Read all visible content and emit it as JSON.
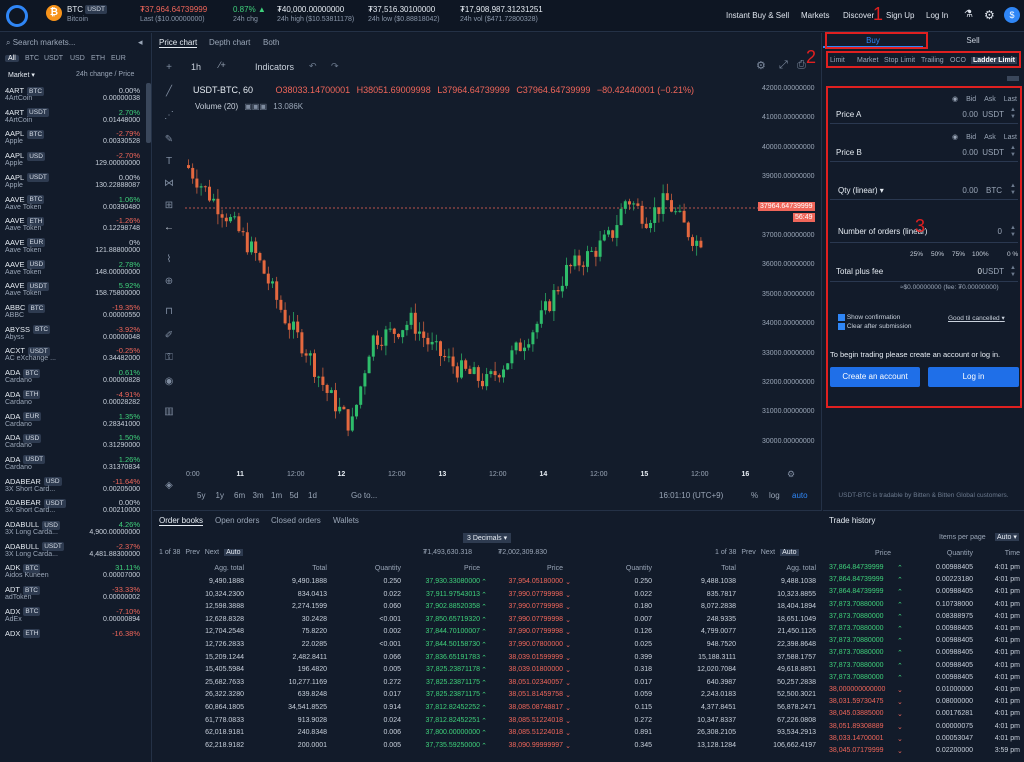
{
  "header": {
    "pair": "BTC",
    "pair_tag": "USDT",
    "pair_name": "Bitcoin",
    "last_value": "₮37,964.64739999",
    "last_label": "Last ($10.00000000)",
    "chg_value": "0.87%",
    "chg_arrow": "▲",
    "chg_label": "24h chg",
    "high_value": "₮40,000.00000000",
    "high_label": "24h high ($10.53811178)",
    "low_value": "₮37,516.30100000",
    "low_label": "24h low ($0.88818042)",
    "vol_value": "₮17,908,987.31231251",
    "vol_label": "24h vol ($471.72800328)",
    "nav": [
      "Instant Buy & Sell",
      "Markets",
      "Discover",
      "Sign Up",
      "Log In"
    ]
  },
  "sidebar": {
    "search_placeholder": "Search markets...",
    "filters": [
      "All",
      "BTC",
      "USDT",
      "USD",
      "ETH",
      "EUR"
    ],
    "col_market": "Market",
    "col_change": "24h change / Price",
    "items": [
      {
        "sym": "4ART",
        "tag": "BTC",
        "name": "4ArtCoin",
        "change": "0.00%",
        "price": "0.00000038",
        "dir": "flat"
      },
      {
        "sym": "4ART",
        "tag": "USDT",
        "name": "4ArtCoin",
        "change": "2.70%",
        "price": "0.01448000",
        "dir": "up"
      },
      {
        "sym": "AAPL",
        "tag": "BTC",
        "name": "Apple",
        "change": "-2.79%",
        "price": "0.00330528",
        "dir": "down"
      },
      {
        "sym": "AAPL",
        "tag": "USD",
        "name": "Apple",
        "change": "-2.70%",
        "price": "129.00000000",
        "dir": "down"
      },
      {
        "sym": "AAPL",
        "tag": "USDT",
        "name": "Apple",
        "change": "0.00%",
        "price": "130.22888087",
        "dir": "flat"
      },
      {
        "sym": "AAVE",
        "tag": "BTC",
        "name": "Aave Token",
        "change": "1.06%",
        "price": "0.00390480",
        "dir": "up"
      },
      {
        "sym": "AAVE",
        "tag": "ETH",
        "name": "Aave Token",
        "change": "-1.26%",
        "price": "0.12298748",
        "dir": "down"
      },
      {
        "sym": "AAVE",
        "tag": "EUR",
        "name": "Aave Token",
        "change": "0%",
        "price": "121.88800000",
        "dir": "flat"
      },
      {
        "sym": "AAVE",
        "tag": "USD",
        "name": "Aave Token",
        "change": "2.78%",
        "price": "148.00000000",
        "dir": "up"
      },
      {
        "sym": "AAVE",
        "tag": "USDT",
        "name": "Aave Token",
        "change": "5.92%",
        "price": "158.75800000",
        "dir": "up"
      },
      {
        "sym": "ABBC",
        "tag": "BTC",
        "name": "ABBC",
        "change": "-19.35%",
        "price": "0.00000550",
        "dir": "down"
      },
      {
        "sym": "ABYSS",
        "tag": "BTC",
        "name": "Abyss",
        "change": "-3.92%",
        "price": "0.00000048",
        "dir": "down"
      },
      {
        "sym": "ACXT",
        "tag": "USDT",
        "name": "AC eXchange ...",
        "change": "-0.25%",
        "price": "0.34482000",
        "dir": "down"
      },
      {
        "sym": "ADA",
        "tag": "BTC",
        "name": "Cardano",
        "change": "0.61%",
        "price": "0.00000828",
        "dir": "up"
      },
      {
        "sym": "ADA",
        "tag": "ETH",
        "name": "Cardano",
        "change": "-4.91%",
        "price": "0.00028282",
        "dir": "down"
      },
      {
        "sym": "ADA",
        "tag": "EUR",
        "name": "Cardano",
        "change": "1.35%",
        "price": "0.28341000",
        "dir": "up"
      },
      {
        "sym": "ADA",
        "tag": "USD",
        "name": "Cardano",
        "change": "1.50%",
        "price": "0.31290000",
        "dir": "up"
      },
      {
        "sym": "ADA",
        "tag": "USDT",
        "name": "Cardano",
        "change": "1.26%",
        "price": "0.31370834",
        "dir": "up"
      },
      {
        "sym": "ADABEAR",
        "tag": "USD",
        "name": "3X Short Card...",
        "change": "-11.64%",
        "price": "0.00205000",
        "dir": "down"
      },
      {
        "sym": "ADABEAR",
        "tag": "USDT",
        "name": "3X Short Card...",
        "change": "0.00%",
        "price": "0.00210000",
        "dir": "flat"
      },
      {
        "sym": "ADABULL",
        "tag": "USD",
        "name": "3X Long Carda...",
        "change": "4.26%",
        "price": "4,900.00000000",
        "dir": "up"
      },
      {
        "sym": "ADABULL",
        "tag": "USDT",
        "name": "3X Long Carda...",
        "change": "-2.37%",
        "price": "4,481.88300000",
        "dir": "down"
      },
      {
        "sym": "ADK",
        "tag": "BTC",
        "name": "Aidos Kuneen",
        "change": "31.11%",
        "price": "0.00007000",
        "dir": "up"
      },
      {
        "sym": "ADT",
        "tag": "BTC",
        "name": "adToken",
        "change": "-33.33%",
        "price": "0.00000002",
        "dir": "down"
      },
      {
        "sym": "ADX",
        "tag": "BTC",
        "name": "AdEx",
        "change": "-7.10%",
        "price": "0.00000894",
        "dir": "down"
      },
      {
        "sym": "ADX",
        "tag": "ETH",
        "name": "",
        "change": "-16.38%",
        "price": "",
        "dir": "down"
      }
    ]
  },
  "chart": {
    "tabs": [
      "Price chart",
      "Depth chart",
      "Both"
    ],
    "interval": "1h",
    "indicators": "Indicators",
    "symbol": "USDT-BTC, 60",
    "volume_label": "Volume (20)",
    "volume_value": "13.086K",
    "o": "O38033.14700001",
    "h": "H38051.69009998",
    "l": "L37964.64739999",
    "c": "C37964.64739999",
    "chg": "−80.42440001 (−0.21%)",
    "price_tag": "37964.64739999",
    "time_tag": "56:49",
    "y_ticks": [
      "42000.00000000",
      "41000.00000000",
      "40000.00000000",
      "39000.00000000",
      "38000.00000000",
      "37000.00000000",
      "36000.00000000",
      "35000.00000000",
      "34000.00000000",
      "33000.00000000",
      "32000.00000000",
      "31000.00000000",
      "30000.00000000"
    ],
    "x_ticks": [
      "0:00",
      "11",
      "12:00",
      "12",
      "12:00",
      "13",
      "12:00",
      "14",
      "12:00",
      "15",
      "12:00",
      "16"
    ],
    "ranges": [
      "5y",
      "1y",
      "6m",
      "3m",
      "1m",
      "5d",
      "1d"
    ],
    "goto": "Go to...",
    "clock": "16:01:10 (UTC+9)",
    "pct": "%",
    "log": "log",
    "auto": "auto"
  },
  "orderbook": {
    "tabs": [
      "Order books",
      "Open orders",
      "Closed orders",
      "Wallets"
    ],
    "decimals": "3 Decimals",
    "left_pager": "1 of 38",
    "prev": "Prev",
    "next": "Next",
    "auto": "Auto",
    "bid_total": "₮1,493,630.318",
    "ask_total": "₮2,002,309.830",
    "right_pager": "1 of 38",
    "bid_headers": [
      "Agg. total",
      "Total",
      "Quantity",
      "Price"
    ],
    "ask_headers": [
      "Price",
      "Quantity",
      "Total",
      "Agg. total"
    ],
    "bids": [
      [
        "9,490.1888",
        "9,490.1888",
        "0.250",
        "37,930.33080000"
      ],
      [
        "10,324.2300",
        "834.0413",
        "0.022",
        "37,911.97543013"
      ],
      [
        "12,598.3888",
        "2,274.1599",
        "0.060",
        "37,902.88520358"
      ],
      [
        "12,628.8328",
        "30.2428",
        "<0.001",
        "37,850.65719320"
      ],
      [
        "12,704.2548",
        "75.8220",
        "0.002",
        "37,844.70100007"
      ],
      [
        "12,726.2833",
        "22.0285",
        "<0.001",
        "37,844.50158730"
      ],
      [
        "15,209.1244",
        "2,482.8411",
        "0.066",
        "37,836.65191783"
      ],
      [
        "15,405.5984",
        "196.4820",
        "0.005",
        "37,825.23871178"
      ],
      [
        "25,682.7633",
        "10,277.1169",
        "0.272",
        "37,825.23871175"
      ],
      [
        "26,322.3280",
        "639.8248",
        "0.017",
        "37,825.23871175"
      ],
      [
        "60,864.1805",
        "34,541.8525",
        "0.914",
        "37,812.82452252"
      ],
      [
        "61,778.0833",
        "913.9028",
        "0.024",
        "37,812.82452251"
      ],
      [
        "62,018.9181",
        "240.8348",
        "0.006",
        "37,800.00000000"
      ],
      [
        "62,218.9182",
        "200.0001",
        "0.005",
        "37,735.59250000"
      ]
    ],
    "asks": [
      [
        "37,954.05180000",
        "0.250",
        "9,488.1038",
        "9,488.1038"
      ],
      [
        "37,990.07799998",
        "0.022",
        "835.7817",
        "10,323.8855"
      ],
      [
        "37,990.07799998",
        "0.180",
        "8,072.2838",
        "18,404.1894"
      ],
      [
        "37,990.07799998",
        "0.007",
        "248.9335",
        "18,651.1049"
      ],
      [
        "37,990.07799998",
        "0.126",
        "4,799.0077",
        "21,450.1126"
      ],
      [
        "37,990.07800000",
        "0.025",
        "948.7520",
        "22,398.8648"
      ],
      [
        "38,039.01599999",
        "0.399",
        "15,188.3111",
        "37,588.1757"
      ],
      [
        "38,039.01800000",
        "0.318",
        "12,020.7084",
        "49,618.8851"
      ],
      [
        "38,051.02340057",
        "0.017",
        "640.3987",
        "50,257.2838"
      ],
      [
        "38,051.81459758",
        "0.059",
        "2,243.0183",
        "52,500.3021"
      ],
      [
        "38,085.08748817",
        "0.115",
        "4,377.8451",
        "56,878.2471"
      ],
      [
        "38,085.51224018",
        "0.272",
        "10,347.8337",
        "67,226.0808"
      ],
      [
        "38,085.51224018",
        "0.891",
        "26,308.2105",
        "93,534.2913"
      ],
      [
        "38,090.99999997",
        "0.345",
        "13,128.1284",
        "106,662.4197"
      ]
    ]
  },
  "order_form": {
    "tab_buy": "Buy",
    "tab_sell": "Sell",
    "types": [
      "Limit",
      "Market",
      "Stop Limit",
      "Trailing",
      "OCO",
      "Ladder Limit"
    ],
    "quick": [
      "Bid",
      "Ask",
      "Last"
    ],
    "price_a_label": "Price A",
    "price_a_value": "0.00",
    "price_a_unit": "USDT",
    "price_b_label": "Price B",
    "price_b_value": "0.00",
    "price_b_unit": "USDT",
    "qty_label": "Qty (linear)",
    "qty_value": "0.00",
    "qty_unit": "BTC",
    "num_orders_label": "Number of orders (linear)",
    "num_orders_value": "0",
    "percents": [
      "25%",
      "50%",
      "75%",
      "100%",
      "0 %"
    ],
    "total_label": "Total plus fee",
    "total_value": "0",
    "total_unit": "USDT",
    "fee_text": "≈$0.00000000 (fee: ₮0.00000000)",
    "show_confirmation": "Show confirmation",
    "clear_after": "Clear after submission",
    "gtc": "Good til cancelled",
    "login_msg": "To begin trading please create an account or log in.",
    "create_btn": "Create an account",
    "login_btn": "Log in",
    "footer_note": "USDT-BTC is tradable by Bitten & Bitten Global customers."
  },
  "annotations": [
    "1",
    "2",
    "3"
  ],
  "trades": {
    "title": "Trade history",
    "items_per_page": "Items per page",
    "auto": "Auto",
    "headers": [
      "Price",
      "Quantity",
      "Time"
    ],
    "rows": [
      [
        "37,864.84739999",
        "0.00988405",
        "4:01 pm",
        "up"
      ],
      [
        "37,864.84739999",
        "0.00223180",
        "4:01 pm",
        "up"
      ],
      [
        "37,864.84739999",
        "0.00988405",
        "4:01 pm",
        "up"
      ],
      [
        "37,873.70880000",
        "0.10738000",
        "4:01 pm",
        "up"
      ],
      [
        "37,873.70880000",
        "0.08388975",
        "4:01 pm",
        "up"
      ],
      [
        "37,873.70880000",
        "0.00988405",
        "4:01 pm",
        "up"
      ],
      [
        "37,873.70880000",
        "0.00988405",
        "4:01 pm",
        "up"
      ],
      [
        "37,873.70880000",
        "0.00988405",
        "4:01 pm",
        "up"
      ],
      [
        "37,873.70880000",
        "0.00988405",
        "4:01 pm",
        "up"
      ],
      [
        "37,873.70880000",
        "0.00988405",
        "4:01 pm",
        "up"
      ],
      [
        "38,000000000000",
        "0.01000000",
        "4:01 pm",
        "down"
      ],
      [
        "38,031.59730475",
        "0.08000000",
        "4:01 pm",
        "down"
      ],
      [
        "38,045.03885000",
        "0.00176281",
        "4:01 pm",
        "down"
      ],
      [
        "38,051.89308889",
        "0.00000075",
        "4:01 pm",
        "down"
      ],
      [
        "38,033.14700001",
        "0.00053047",
        "4:01 pm",
        "down"
      ],
      [
        "38,045.07179999",
        "0.02200000",
        "3:59 pm",
        "down"
      ]
    ]
  }
}
